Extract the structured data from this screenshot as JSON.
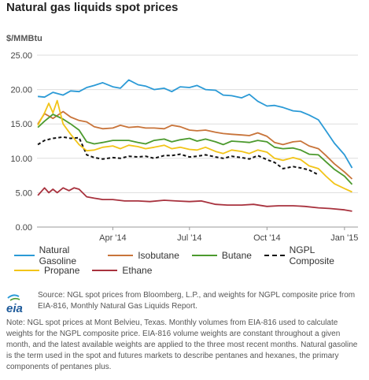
{
  "title": "Natural gas liquids spot prices",
  "unit": "$/MMBtu",
  "logo_text": "eia",
  "source": "Source: NGL spot prices from Bloomberg, L.P., and weights for NGPL composite price from EIA-816, Monthly Natural Gas Liquids Report.",
  "note": "Note: NGL spot prices at Mont Belvieu, Texas. Monthly volumes from EIA-816 used to calculate weights for the NGPL composite price. EIA-816 volume weights are constant throughout a given month, and the latest available weights are applied to the three most recent months. Natural gasoline is the term used in the spot and futures markets to describe pentanes and hexanes, the primary components of pentanes plus.",
  "chart_data": {
    "type": "line",
    "title": "Natural gas liquids spot prices",
    "ylabel": "$/MMBtu",
    "ylim": [
      0,
      25
    ],
    "yticks": [
      0,
      5,
      10,
      15,
      20,
      25
    ],
    "ytick_labels": [
      "0.00",
      "5.00",
      "10.00",
      "15.00",
      "20.00",
      "25.00"
    ],
    "xlim": [
      "2014-01-01",
      "2015-01-17"
    ],
    "xticks": [
      "2014-04-01",
      "2014-07-01",
      "2014-10-01",
      "2015-01-01"
    ],
    "xtick_labels": [
      "Apr '14",
      "Jul '14",
      "Oct '14",
      "Jan '15"
    ],
    "grid": true,
    "legend_position": "bottom",
    "series": [
      {
        "name": "Natural Gasoline",
        "color": "#2b9ad6",
        "dash": false,
        "x": [
          "2014-01-02",
          "2014-01-10",
          "2014-01-20",
          "2014-02-01",
          "2014-02-10",
          "2014-02-20",
          "2014-03-01",
          "2014-03-10",
          "2014-03-20",
          "2014-04-01",
          "2014-04-10",
          "2014-04-20",
          "2014-05-01",
          "2014-05-10",
          "2014-05-20",
          "2014-06-01",
          "2014-06-10",
          "2014-06-20",
          "2014-07-01",
          "2014-07-10",
          "2014-07-20",
          "2014-08-01",
          "2014-08-10",
          "2014-08-20",
          "2014-09-01",
          "2014-09-10",
          "2014-09-20",
          "2014-10-01",
          "2014-10-10",
          "2014-10-20",
          "2014-11-01",
          "2014-11-10",
          "2014-11-20",
          "2014-12-01",
          "2014-12-10",
          "2014-12-20",
          "2015-01-01",
          "2015-01-10"
        ],
        "y": [
          19.0,
          18.9,
          19.6,
          19.2,
          19.8,
          19.7,
          20.3,
          20.6,
          21.0,
          20.4,
          20.2,
          21.4,
          20.7,
          20.5,
          20.0,
          20.2,
          19.7,
          20.4,
          20.3,
          20.6,
          20.0,
          19.9,
          19.2,
          19.1,
          18.8,
          19.3,
          18.3,
          17.6,
          17.7,
          17.4,
          16.9,
          16.8,
          16.3,
          15.6,
          14.0,
          12.2,
          10.5,
          8.6
        ]
      },
      {
        "name": "Isobutane",
        "color": "#c8743a",
        "dash": false,
        "x": [
          "2014-01-02",
          "2014-01-10",
          "2014-01-20",
          "2014-02-01",
          "2014-02-10",
          "2014-02-20",
          "2014-03-01",
          "2014-03-10",
          "2014-03-20",
          "2014-04-01",
          "2014-04-10",
          "2014-04-20",
          "2014-05-01",
          "2014-05-10",
          "2014-05-20",
          "2014-06-01",
          "2014-06-10",
          "2014-06-20",
          "2014-07-01",
          "2014-07-10",
          "2014-07-20",
          "2014-08-01",
          "2014-08-10",
          "2014-08-20",
          "2014-09-01",
          "2014-09-10",
          "2014-09-20",
          "2014-10-01",
          "2014-10-10",
          "2014-10-20",
          "2014-11-01",
          "2014-11-10",
          "2014-11-20",
          "2014-12-01",
          "2014-12-10",
          "2014-12-20",
          "2015-01-01",
          "2015-01-10"
        ],
        "y": [
          15.0,
          16.5,
          15.8,
          16.8,
          16.0,
          15.5,
          15.3,
          14.6,
          14.3,
          14.4,
          14.8,
          14.5,
          14.6,
          14.4,
          14.4,
          14.3,
          14.8,
          14.6,
          14.1,
          14.0,
          14.1,
          13.8,
          13.6,
          13.5,
          13.4,
          13.3,
          13.7,
          13.2,
          12.3,
          12.0,
          12.4,
          12.5,
          11.8,
          11.4,
          10.4,
          9.2,
          8.0,
          7.0
        ]
      },
      {
        "name": "Butane",
        "color": "#4c9a2e",
        "dash": false,
        "x": [
          "2014-01-02",
          "2014-01-10",
          "2014-01-20",
          "2014-02-01",
          "2014-02-10",
          "2014-02-20",
          "2014-03-01",
          "2014-03-10",
          "2014-03-20",
          "2014-04-01",
          "2014-04-10",
          "2014-04-20",
          "2014-05-01",
          "2014-05-10",
          "2014-05-20",
          "2014-06-01",
          "2014-06-10",
          "2014-06-20",
          "2014-07-01",
          "2014-07-10",
          "2014-07-20",
          "2014-08-01",
          "2014-08-10",
          "2014-08-20",
          "2014-09-01",
          "2014-09-10",
          "2014-09-20",
          "2014-10-01",
          "2014-10-10",
          "2014-10-20",
          "2014-11-01",
          "2014-11-10",
          "2014-11-20",
          "2014-12-01",
          "2014-12-10",
          "2014-12-20",
          "2015-01-01",
          "2015-01-10"
        ],
        "y": [
          14.5,
          15.4,
          16.4,
          15.7,
          15.0,
          14.1,
          12.4,
          12.1,
          12.3,
          12.6,
          12.6,
          12.6,
          12.3,
          12.1,
          12.6,
          12.8,
          12.4,
          12.7,
          12.9,
          12.5,
          12.8,
          12.4,
          12.0,
          12.5,
          12.4,
          12.3,
          12.6,
          12.4,
          11.6,
          11.4,
          11.5,
          11.2,
          10.6,
          10.5,
          9.5,
          8.4,
          7.4,
          6.2
        ]
      },
      {
        "name": "NGPL Composite",
        "color": "#111111",
        "dash": true,
        "x": [
          "2014-01-02",
          "2014-01-10",
          "2014-01-20",
          "2014-02-01",
          "2014-02-10",
          "2014-02-20",
          "2014-03-01",
          "2014-03-10",
          "2014-03-20",
          "2014-04-01",
          "2014-04-10",
          "2014-04-20",
          "2014-05-01",
          "2014-05-10",
          "2014-05-20",
          "2014-06-01",
          "2014-06-10",
          "2014-06-20",
          "2014-07-01",
          "2014-07-10",
          "2014-07-20",
          "2014-08-01",
          "2014-08-10",
          "2014-08-20",
          "2014-09-01",
          "2014-09-10",
          "2014-09-20",
          "2014-10-01",
          "2014-10-10",
          "2014-10-20",
          "2014-11-01",
          "2014-11-10",
          "2014-11-20",
          "2014-12-01"
        ],
        "y": [
          12.0,
          12.6,
          12.9,
          13.1,
          12.9,
          13.0,
          10.5,
          10.1,
          9.9,
          10.1,
          10.0,
          10.3,
          10.2,
          10.3,
          10.0,
          10.4,
          10.4,
          10.6,
          10.2,
          10.3,
          10.5,
          10.2,
          10.0,
          10.3,
          10.1,
          9.9,
          10.4,
          9.8,
          9.4,
          8.5,
          8.8,
          8.6,
          8.3,
          7.6
        ]
      },
      {
        "name": "Propane",
        "color": "#f2c418",
        "dash": false,
        "x": [
          "2014-01-02",
          "2014-01-10",
          "2014-01-15",
          "2014-01-20",
          "2014-01-25",
          "2014-02-01",
          "2014-02-10",
          "2014-02-20",
          "2014-03-01",
          "2014-03-10",
          "2014-03-20",
          "2014-04-01",
          "2014-04-10",
          "2014-04-20",
          "2014-05-01",
          "2014-05-10",
          "2014-05-20",
          "2014-06-01",
          "2014-06-10",
          "2014-06-20",
          "2014-07-01",
          "2014-07-10",
          "2014-07-20",
          "2014-08-01",
          "2014-08-10",
          "2014-08-20",
          "2014-09-01",
          "2014-09-10",
          "2014-09-20",
          "2014-10-01",
          "2014-10-10",
          "2014-10-20",
          "2014-11-01",
          "2014-11-10",
          "2014-11-20",
          "2014-12-01",
          "2014-12-10",
          "2014-12-20",
          "2015-01-01",
          "2015-01-10"
        ],
        "y": [
          14.8,
          16.6,
          18.0,
          16.6,
          18.4,
          15.0,
          13.5,
          12.0,
          11.1,
          11.2,
          11.6,
          11.8,
          11.4,
          11.9,
          11.7,
          11.4,
          11.6,
          11.9,
          11.4,
          11.6,
          11.3,
          11.2,
          11.6,
          11.0,
          10.7,
          11.2,
          11.0,
          10.7,
          11.2,
          10.9,
          10.0,
          9.7,
          10.1,
          9.8,
          8.9,
          8.5,
          7.4,
          6.3,
          5.6,
          5.1
        ]
      },
      {
        "name": "Ethane",
        "color": "#a8323e",
        "dash": false,
        "x": [
          "2014-01-02",
          "2014-01-10",
          "2014-01-15",
          "2014-01-20",
          "2014-01-25",
          "2014-02-01",
          "2014-02-08",
          "2014-02-14",
          "2014-02-20",
          "2014-03-01",
          "2014-03-10",
          "2014-03-20",
          "2014-04-01",
          "2014-04-15",
          "2014-05-01",
          "2014-05-15",
          "2014-06-01",
          "2014-06-15",
          "2014-07-01",
          "2014-07-15",
          "2014-08-01",
          "2014-08-15",
          "2014-09-01",
          "2014-09-15",
          "2014-10-01",
          "2014-10-15",
          "2014-11-01",
          "2014-11-15",
          "2014-12-01",
          "2014-12-15",
          "2015-01-01",
          "2015-01-10"
        ],
        "y": [
          4.6,
          5.7,
          5.0,
          5.5,
          5.0,
          5.7,
          5.3,
          5.7,
          5.5,
          4.4,
          4.2,
          4.0,
          4.0,
          3.8,
          3.8,
          3.7,
          3.9,
          3.8,
          3.7,
          3.8,
          3.3,
          3.2,
          3.2,
          3.3,
          3.0,
          3.1,
          3.1,
          3.0,
          2.8,
          2.7,
          2.5,
          2.3
        ]
      }
    ]
  }
}
